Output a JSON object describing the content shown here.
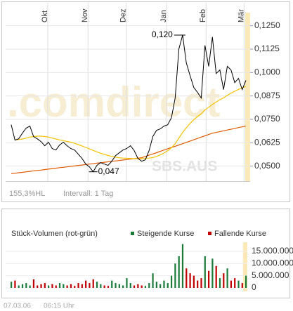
{
  "chart_data": [
    {
      "type": "line",
      "xlim": [
        0,
        63
      ],
      "xticks": [
        {
          "value": 9.8,
          "label": "Okt"
        },
        {
          "value": 20.6,
          "label": "Nov"
        },
        {
          "value": 30.9,
          "label": "Dez"
        },
        {
          "value": 41.7,
          "label": "Jan"
        },
        {
          "value": 52.3,
          "label": "Feb"
        },
        {
          "value": 62.5,
          "label": "Mär"
        }
      ],
      "ylim": [
        0.042,
        0.132
      ],
      "yticks": [
        {
          "value": 0.05,
          "label": "0,0500"
        },
        {
          "value": 0.0625,
          "label": "0,0625"
        },
        {
          "value": 0.075,
          "label": "0,0750"
        },
        {
          "value": 0.0875,
          "label": "0,0875"
        },
        {
          "value": 0.1,
          "label": "0,1000"
        },
        {
          "value": 0.1125,
          "label": "0,1125"
        },
        {
          "value": 0.125,
          "label": "0,1250"
        }
      ],
      "grid": true,
      "series": [
        {
          "color": "#000000",
          "values": [
            0.0721,
            0.0639,
            0.0646,
            0.0676,
            0.0703,
            0.0714,
            0.0658,
            0.0646,
            0.0631,
            0.0609,
            0.0628,
            0.0594,
            0.0586,
            0.0613,
            0.0628,
            0.0609,
            0.0594,
            0.0586,
            0.0564,
            0.0541,
            0.0511,
            0.0496,
            0.047,
            0.0504,
            0.0519,
            0.0511,
            0.0504,
            0.0526,
            0.0556,
            0.0571,
            0.0586,
            0.0594,
            0.0609,
            0.0583,
            0.0541,
            0.0526,
            0.0534,
            0.0583,
            0.0658,
            0.0691,
            0.0699,
            0.0714,
            0.0721,
            0.0759,
            0.0864,
            0.1126,
            0.12,
            0.1051,
            0.0984,
            0.092,
            0.0894,
            0.0864,
            0.1145,
            0.1033,
            0.119,
            0.0995,
            0.1014,
            0.0909,
            0.1033,
            0.1014,
            0.0946,
            0.0969,
            0.0909,
            0.0958
          ]
        },
        {
          "color": "#f2c200",
          "values": [
            null,
            0.064,
            0.0642,
            0.0645,
            0.065,
            0.0655,
            0.0658,
            0.066,
            0.066,
            0.0658,
            0.0655,
            0.065,
            0.0645,
            0.064,
            0.0636,
            0.0632,
            0.0628,
            0.0622,
            0.0615,
            0.0608,
            0.06,
            0.0592,
            0.0584,
            0.0576,
            0.0569,
            0.0563,
            0.0557,
            0.0552,
            0.0548,
            0.0545,
            0.0543,
            0.0542,
            0.0541,
            0.054,
            0.054,
            0.054,
            0.0541,
            0.0543,
            0.0546,
            0.0552,
            0.056,
            0.057,
            0.0582,
            0.0598,
            0.062,
            0.065,
            0.068,
            0.0705,
            0.0728,
            0.0748,
            0.0765,
            0.078,
            0.08,
            0.0815,
            0.083,
            0.0842,
            0.0855,
            0.0865,
            0.0878,
            0.089,
            0.09,
            0.091,
            0.0918,
            0.0925
          ]
        },
        {
          "color": "#e05a00",
          "values": [
            0.046,
            0.0462,
            0.0465,
            0.0467,
            0.047,
            0.0472,
            0.0475,
            0.0477,
            0.0479,
            0.0482,
            0.0484,
            0.0487,
            0.0489,
            0.0492,
            0.0494,
            0.0496,
            0.0499,
            0.0501,
            0.0504,
            0.0506,
            0.0509,
            0.0511,
            0.0513,
            0.0516,
            0.0518,
            0.0521,
            0.0523,
            0.0526,
            0.0528,
            0.053,
            0.0533,
            0.0535,
            0.0538,
            0.054,
            0.0543,
            0.0545,
            0.0552,
            0.0559,
            0.0565,
            0.0572,
            0.0579,
            0.0586,
            0.0593,
            0.06,
            0.0606,
            0.0613,
            0.062,
            0.0627,
            0.0634,
            0.0641,
            0.0648,
            0.0655,
            0.0662,
            0.0669,
            0.0676,
            0.068,
            0.0684,
            0.0689,
            0.0693,
            0.0697,
            0.0701,
            0.0706,
            0.071,
            0.0714
          ]
        }
      ],
      "annotations": [
        {
          "text": "0,120"
        },
        {
          "text": "0,047"
        }
      ],
      "watermark": ".comdirect",
      "symbol": "SBS.AUS",
      "notes": [
        "155,3%HL",
        "Intervall: 1 Tag"
      ]
    },
    {
      "type": "bar",
      "title": "Stück-Volumen (rot-grün)",
      "xlim": [
        0,
        63
      ],
      "ylim": [
        0,
        18750000
      ],
      "yticks": [
        0,
        {
          "value": 5000000,
          "label": "5.000.000"
        },
        {
          "value": 10000000,
          "label": "10.000.000"
        },
        {
          "value": 15000000,
          "label": "15.000.000"
        }
      ],
      "series": [
        {
          "name": "Steigende Kurse",
          "color": "#1a7a3a",
          "values": [
            2500000,
            null,
            1000000,
            1500000,
            2000000,
            1000000,
            null,
            null,
            null,
            null,
            1000000,
            null,
            null,
            2000000,
            1500000,
            null,
            null,
            null,
            null,
            null,
            null,
            null,
            null,
            2500000,
            1500000,
            null,
            null,
            3000000,
            2000000,
            1500000,
            1000000,
            4000000,
            2000000,
            null,
            null,
            null,
            800000,
            2000000,
            6000000,
            2500000,
            1500000,
            3000000,
            2000000,
            5000000,
            10000000,
            13000000,
            18000000,
            null,
            null,
            null,
            null,
            null,
            13000000,
            null,
            12000000,
            null,
            4000000,
            null,
            8000000,
            null,
            null,
            3000000,
            null,
            5000000
          ]
        },
        {
          "name": "Fallende Kurse",
          "color": "#c00000",
          "values": [
            null,
            3000000,
            null,
            null,
            null,
            null,
            3500000,
            1000000,
            1500000,
            2000000,
            null,
            1500000,
            1000000,
            null,
            null,
            1000000,
            1500000,
            800000,
            2000000,
            1500000,
            3000000,
            2000000,
            3500000,
            null,
            null,
            1000000,
            800000,
            null,
            null,
            null,
            null,
            null,
            null,
            1000000,
            1500000,
            1000000,
            null,
            null,
            null,
            null,
            null,
            null,
            null,
            null,
            null,
            null,
            null,
            8000000,
            6000000,
            5000000,
            3000000,
            4000000,
            null,
            7000000,
            null,
            9000000,
            null,
            6000000,
            null,
            3000000,
            4000000,
            null,
            2000000,
            null
          ]
        }
      ]
    }
  ],
  "footer": {
    "date": "07.03.06",
    "time": "06:15 Uhr"
  }
}
